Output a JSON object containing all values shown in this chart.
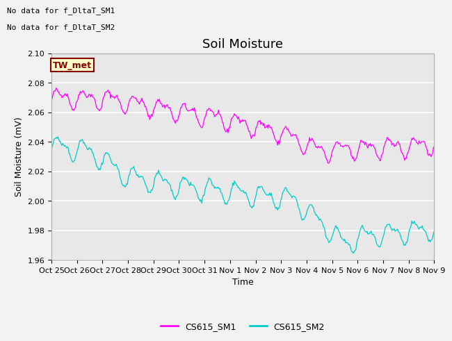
{
  "title": "Soil Moisture",
  "xlabel": "Time",
  "ylabel": "Soil Moisture (mV)",
  "ylim": [
    1.96,
    2.1
  ],
  "yticks": [
    1.96,
    1.98,
    2.0,
    2.02,
    2.04,
    2.06,
    2.08,
    2.1
  ],
  "xtick_labels": [
    "Oct 25",
    "Oct 26",
    "Oct 27",
    "Oct 28",
    "Oct 29",
    "Oct 30",
    "Oct 31",
    "Nov 1",
    "Nov 2",
    "Nov 3",
    "Nov 4",
    "Nov 5",
    "Nov 6",
    "Nov 7",
    "Nov 8",
    "Nov 9"
  ],
  "no_data_text1": "No data for f_DltaT_SM1",
  "no_data_text2": "No data for f_DltaT_SM2",
  "tw_met_label": "TW_met",
  "legend_label1": "CS615_SM1",
  "legend_label2": "CS615_SM2",
  "color1": "#FF00FF",
  "color2": "#00CCCC",
  "tw_met_bg": "#FFFFCC",
  "tw_met_border": "#880000",
  "tw_met_text": "#880000",
  "axes_bg": "#E8E8E8",
  "grid_color": "#FFFFFF",
  "fig_bg": "#F2F2F2",
  "title_fontsize": 13,
  "label_fontsize": 9,
  "tick_fontsize": 8,
  "nodata_fontsize": 8,
  "tw_fontsize": 9
}
